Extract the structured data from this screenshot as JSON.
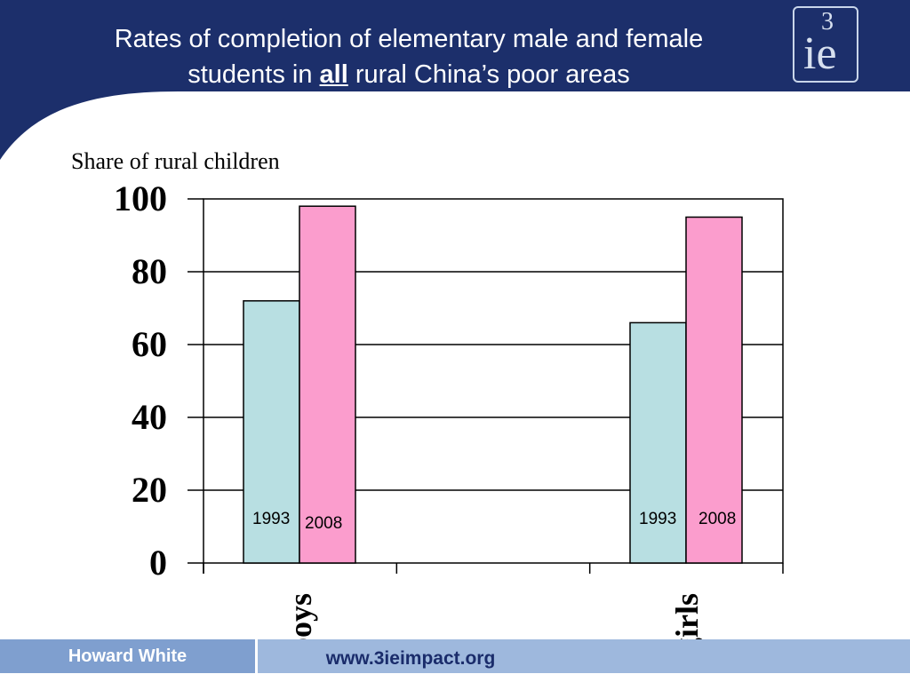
{
  "slide": {
    "title_line1": "Rates of completion of elementary male and  female",
    "title_line2_pre": "students in ",
    "title_line2_bold": "all",
    "title_line2_post": " rural China’s poor areas"
  },
  "logo": {
    "superscript": "3",
    "main": "ie"
  },
  "footer": {
    "author": "Howard White",
    "url": "www.3ieimpact.org"
  },
  "colors": {
    "header": "#1c2f6b",
    "series_1993": "#b8dfe2",
    "series_2008": "#fb9dcd",
    "footer_band": "#9eb8dd",
    "footer_author_bg": "#7f9fcf"
  },
  "chart_data": {
    "type": "bar",
    "ylabel": "Share of rural children",
    "categories": [
      "boys",
      "girls"
    ],
    "ylim": [
      0,
      100
    ],
    "yticks": [
      "0",
      "20",
      "40",
      "60",
      "80",
      "100"
    ],
    "grid": true,
    "series": [
      {
        "name": "1993",
        "values": [
          72,
          66
        ]
      },
      {
        "name": "2008",
        "values": [
          98,
          95
        ]
      }
    ]
  }
}
